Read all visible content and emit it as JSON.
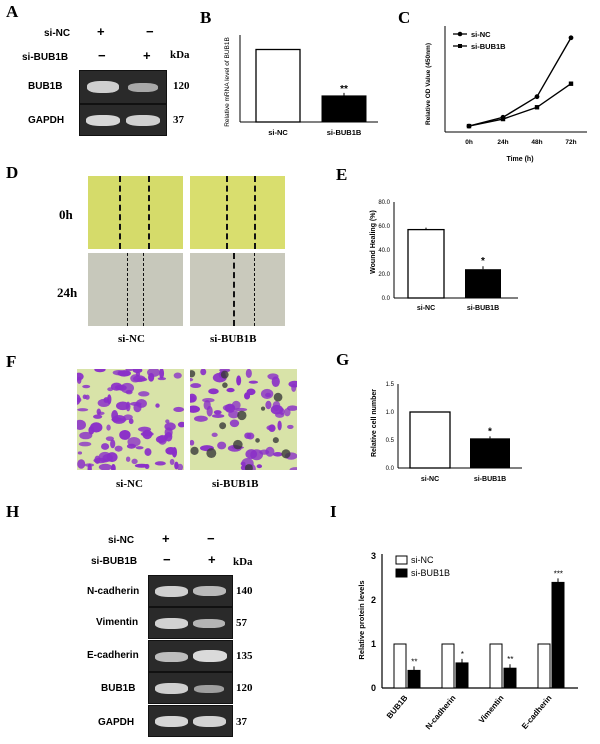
{
  "panel_letters": {
    "A": "A",
    "B": "B",
    "C": "C",
    "D": "D",
    "E": "E",
    "F": "F",
    "G": "G",
    "H": "H",
    "I": "I"
  },
  "panelA": {
    "rows": [
      {
        "label": "si-NC",
        "signs": [
          "+",
          "−"
        ]
      },
      {
        "label": "si-BUB1B",
        "signs": [
          "−",
          "+"
        ]
      }
    ],
    "kda": "kDa",
    "blots": [
      {
        "label": "BUB1B",
        "kda": "120"
      },
      {
        "label": "GAPDH",
        "kda": "37"
      }
    ]
  },
  "panelD": {
    "times": [
      "0h",
      "24h"
    ],
    "groups": [
      "si-NC",
      "si-BUB1B"
    ]
  },
  "panelF": {
    "groups": [
      "si-NC",
      "si-BUB1B"
    ]
  },
  "panelH": {
    "rows": [
      {
        "label": "si-NC",
        "signs": [
          "+",
          "−"
        ]
      },
      {
        "label": "si-BUB1B",
        "signs": [
          "−",
          "+"
        ]
      }
    ],
    "kda": "kDa",
    "blots": [
      {
        "label": "N-cadherin",
        "kda": "140"
      },
      {
        "label": "Vimentin",
        "kda": "57"
      },
      {
        "label": "E-cadherin",
        "kda": "135"
      },
      {
        "label": "BUB1B",
        "kda": "120"
      },
      {
        "label": "GAPDH",
        "kda": "37"
      }
    ]
  },
  "colors": {
    "bar_fill_dark": "#000000",
    "bar_fill_light": "#ffffff",
    "wound_bg": "#d6dc6c",
    "wound_bg_24h": "#c8c8ba",
    "transwell_bg": "#d8e3a8",
    "cell_stain": "#8a2fc8"
  },
  "chart_data": [
    {
      "panel": "B",
      "type": "bar",
      "categories": [
        "si-NC",
        "si-BUB1B"
      ],
      "values": [
        1.0,
        0.36
      ],
      "ylabel": "Relative mRNA level of BUB1B",
      "ylim": [
        0,
        1.2
      ],
      "annotations": [
        "",
        "**"
      ]
    },
    {
      "panel": "C",
      "type": "line",
      "x": [
        "0h",
        "24h",
        "48h",
        "72h"
      ],
      "series": [
        {
          "name": "si-NC",
          "values": [
            0.1,
            0.25,
            0.6,
            1.6
          ]
        },
        {
          "name": "si-BUB1B",
          "values": [
            0.1,
            0.22,
            0.42,
            0.82
          ]
        }
      ],
      "xlabel": "Time (h)",
      "ylabel": "Relative OD Value (450nm)",
      "ylim": [
        0,
        1.8
      ],
      "legend": "top-left"
    },
    {
      "panel": "E",
      "type": "bar",
      "categories": [
        "si-NC",
        "si-BUB1B"
      ],
      "values": [
        57,
        24
      ],
      "ylabel": "Wound Healing (%)",
      "ylim": [
        0,
        80
      ],
      "yticks": [
        "0.0",
        "20.0",
        "40.0",
        "60.0",
        "80.0"
      ],
      "annotations": [
        "",
        "*"
      ]
    },
    {
      "panel": "G",
      "type": "bar",
      "categories": [
        "si-NC",
        "si-BUB1B"
      ],
      "values": [
        1.0,
        0.53
      ],
      "ylabel": "Relative cell number",
      "ylim": [
        0,
        1.5
      ],
      "yticks": [
        "0.0",
        "0.5",
        "1.0",
        "1.5"
      ],
      "annotations": [
        "",
        "*"
      ]
    },
    {
      "panel": "I",
      "type": "bar",
      "categories": [
        "BUB1B",
        "N-cadherin",
        "Vimentin",
        "E-cadherin"
      ],
      "series": [
        {
          "name": "si-NC",
          "values": [
            1,
            1,
            1,
            1
          ]
        },
        {
          "name": "si-BUB1B",
          "values": [
            0.4,
            0.57,
            0.45,
            2.4
          ]
        }
      ],
      "ylabel": "Relative protein levels",
      "ylim": [
        0,
        3
      ],
      "yticks": [
        "0",
        "1",
        "2",
        "3"
      ],
      "annotations": [
        "**",
        "*",
        "**",
        "***"
      ],
      "legend": "top-left"
    }
  ]
}
